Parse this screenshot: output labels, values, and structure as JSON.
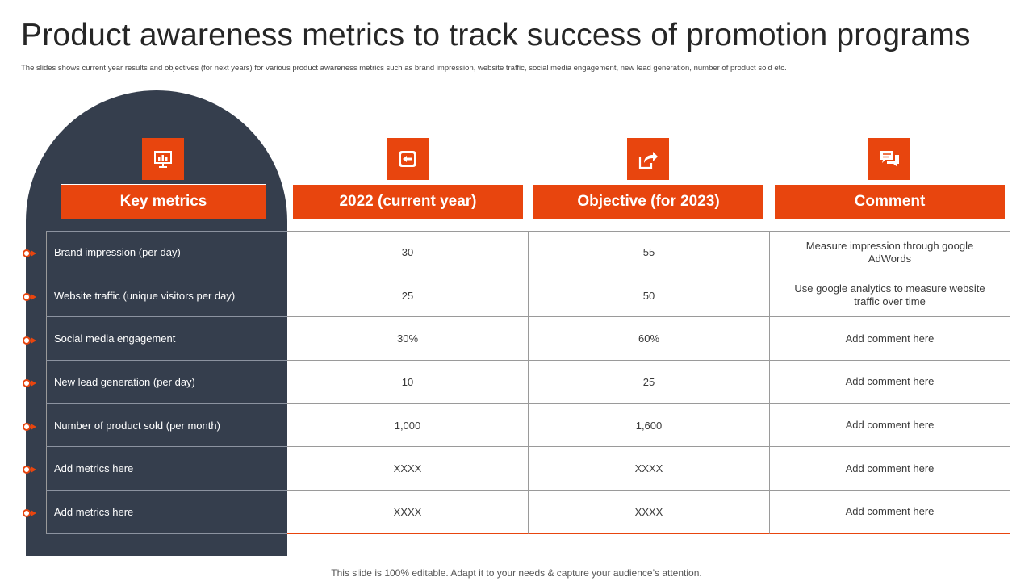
{
  "title": "Product awareness metrics to track success of promotion programs",
  "subtitle": "The slides shows current year results and objectives (for next years) for various product awareness metrics such as brand impression, website traffic, social media engagement, new lead generation, number of product sold etc.",
  "icons": [
    "presentation-chart-icon",
    "back-arrow-icon",
    "share-arrow-icon",
    "chat-bubbles-icon"
  ],
  "headers": {
    "key_metrics": "Key metrics",
    "current_year": "2022 (current year)",
    "objective": "Objective (for 2023)",
    "comment": "Comment"
  },
  "rows": [
    {
      "metric": "Brand impression (per day)",
      "current": "30",
      "objective": "55",
      "comment": "Measure impression through google AdWords"
    },
    {
      "metric": "Website traffic (unique visitors per day)",
      "current": "25",
      "objective": "50",
      "comment": "Use google analytics to measure website traffic over time"
    },
    {
      "metric": "Social media engagement",
      "current": "30%",
      "objective": "60%",
      "comment": "Add comment here"
    },
    {
      "metric": "New lead generation (per day)",
      "current": "10",
      "objective": "25",
      "comment": "Add comment here"
    },
    {
      "metric": "Number of product sold (per month)",
      "current": "1,000",
      "objective": "1,600",
      "comment": "Add comment here"
    },
    {
      "metric": "Add metrics here",
      "current": "XXXX",
      "objective": "XXXX",
      "comment": "Add comment here"
    },
    {
      "metric": "Add metrics here",
      "current": "XXXX",
      "objective": "XXXX",
      "comment": "Add comment here"
    }
  ],
  "footer": "This slide is 100% editable. Adapt it to your needs & capture your audience’s attention.",
  "colors": {
    "accent": "#e8450e",
    "dark": "#353e4d"
  }
}
